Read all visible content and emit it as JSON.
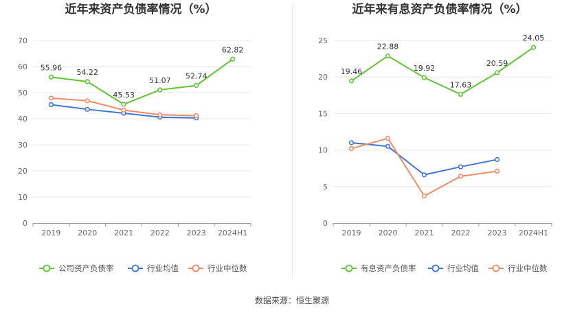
{
  "colors": {
    "green": "#5CC530",
    "blue": "#3F74D6",
    "orange": "#EE8A64",
    "grid": "#E6E6EC",
    "axis": "#999999"
  },
  "source": "数据来源：恒生聚源",
  "chart_data": [
    {
      "type": "line",
      "title": "近年来资产负债率情况（%）",
      "categories": [
        "2019",
        "2020",
        "2021",
        "2022",
        "2023",
        "2024H1"
      ],
      "ylim": [
        0,
        70
      ],
      "yticks": [
        "0",
        "10",
        "20",
        "30",
        "40",
        "50",
        "60",
        "70"
      ],
      "grid": true,
      "legend_position": "bottom",
      "series": [
        {
          "name": "公司资产负债率",
          "color_key": "green",
          "values": [
            55.96,
            54.22,
            45.53,
            51.07,
            52.74,
            62.82
          ],
          "labels": [
            "55.96",
            "54.22",
            "45.53",
            "51.07",
            "52.74",
            "62.82"
          ]
        },
        {
          "name": "行业均值",
          "color_key": "blue",
          "values": [
            45.4,
            43.6,
            42.1,
            40.6,
            40.3,
            null
          ]
        },
        {
          "name": "行业中位数",
          "color_key": "orange",
          "values": [
            47.9,
            46.9,
            43.3,
            41.5,
            41.2,
            null
          ]
        }
      ]
    },
    {
      "type": "line",
      "title": "近年来有息资产负债率情况（%）",
      "categories": [
        "2019",
        "2020",
        "2021",
        "2022",
        "2023",
        "2024H1"
      ],
      "ylim": [
        0,
        25
      ],
      "yticks": [
        "0",
        "5",
        "10",
        "15",
        "20",
        "25"
      ],
      "grid": true,
      "legend_position": "bottom",
      "series": [
        {
          "name": "有息资产负债率",
          "color_key": "green",
          "values": [
            19.46,
            22.88,
            19.92,
            17.63,
            20.59,
            24.05
          ],
          "labels": [
            "19.46",
            "22.88",
            "19.92",
            "17.63",
            "20.59",
            "24.05"
          ]
        },
        {
          "name": "行业均值",
          "color_key": "blue",
          "values": [
            11.0,
            10.5,
            6.6,
            7.7,
            8.7,
            null
          ]
        },
        {
          "name": "行业中位数",
          "color_key": "orange",
          "values": [
            10.2,
            11.6,
            3.7,
            6.4,
            7.1,
            null
          ]
        }
      ]
    }
  ]
}
